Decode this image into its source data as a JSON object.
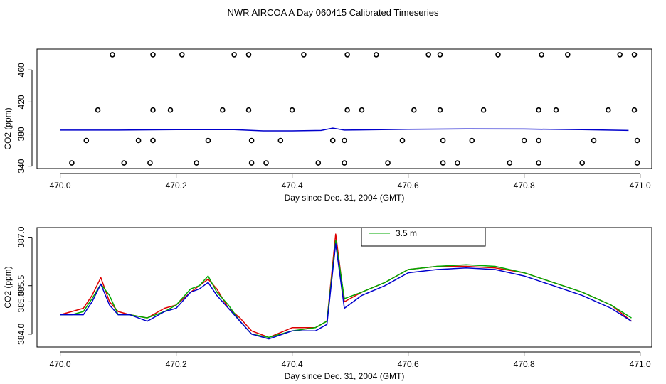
{
  "title": "NWR AIRCOA A  Day 060415  Calibrated Timeseries",
  "chart_data": [
    {
      "type": "scatter",
      "xlabel": "Day since Dec. 31, 2004 (GMT)",
      "ylabel": "CO2 (ppm)",
      "xlim": [
        469.96,
        471.02
      ],
      "ylim": [
        337,
        486
      ],
      "xticks": [
        "470.0",
        "470.2",
        "470.4",
        "470.6",
        "470.8",
        "471.0"
      ],
      "yticks": [
        "340",
        "380",
        "420",
        "460"
      ],
      "points": {
        "color": "#000000",
        "data": [
          [
            470.09,
            479
          ],
          [
            470.16,
            479
          ],
          [
            470.21,
            479
          ],
          [
            470.3,
            479
          ],
          [
            470.325,
            479
          ],
          [
            470.42,
            479
          ],
          [
            470.495,
            479
          ],
          [
            470.545,
            479
          ],
          [
            470.635,
            479
          ],
          [
            470.655,
            479
          ],
          [
            470.755,
            479
          ],
          [
            470.83,
            479
          ],
          [
            470.875,
            479
          ],
          [
            470.965,
            479
          ],
          [
            470.99,
            479
          ],
          [
            470.065,
            410
          ],
          [
            470.16,
            410
          ],
          [
            470.19,
            410
          ],
          [
            470.28,
            410
          ],
          [
            470.325,
            410
          ],
          [
            470.4,
            410
          ],
          [
            470.495,
            410
          ],
          [
            470.52,
            410
          ],
          [
            470.61,
            410
          ],
          [
            470.655,
            410
          ],
          [
            470.73,
            410
          ],
          [
            470.825,
            410
          ],
          [
            470.855,
            410
          ],
          [
            470.945,
            410
          ],
          [
            470.99,
            410
          ],
          [
            470.045,
            372
          ],
          [
            470.135,
            372
          ],
          [
            470.16,
            372
          ],
          [
            470.255,
            372
          ],
          [
            470.33,
            372
          ],
          [
            470.38,
            372
          ],
          [
            470.47,
            372
          ],
          [
            470.49,
            372
          ],
          [
            470.59,
            372
          ],
          [
            470.66,
            372
          ],
          [
            470.71,
            372
          ],
          [
            470.8,
            372
          ],
          [
            470.825,
            372
          ],
          [
            470.92,
            372
          ],
          [
            470.995,
            372
          ],
          [
            470.02,
            344
          ],
          [
            470.11,
            344
          ],
          [
            470.155,
            344
          ],
          [
            470.235,
            344
          ],
          [
            470.33,
            344
          ],
          [
            470.355,
            344
          ],
          [
            470.445,
            344
          ],
          [
            470.49,
            344
          ],
          [
            470.565,
            344
          ],
          [
            470.66,
            344
          ],
          [
            470.685,
            344
          ],
          [
            470.775,
            344
          ],
          [
            470.825,
            344
          ],
          [
            470.9,
            344
          ],
          [
            470.995,
            344
          ]
        ]
      },
      "line": {
        "color": "#0000cc",
        "data": [
          [
            470.0,
            385
          ],
          [
            470.1,
            385
          ],
          [
            470.2,
            385.5
          ],
          [
            470.3,
            385.5
          ],
          [
            470.35,
            384
          ],
          [
            470.4,
            384
          ],
          [
            470.45,
            384.5
          ],
          [
            470.47,
            387.5
          ],
          [
            470.49,
            385
          ],
          [
            470.6,
            386
          ],
          [
            470.7,
            386.5
          ],
          [
            470.8,
            386.3
          ],
          [
            470.9,
            385.5
          ],
          [
            470.98,
            384.5
          ]
        ]
      }
    },
    {
      "type": "line",
      "xlabel": "Day since Dec. 31, 2004 (GMT)",
      "ylabel": "CO2 (ppm)",
      "xlim": [
        469.96,
        471.02
      ],
      "ylim": [
        383.6,
        387.3
      ],
      "xticks": [
        "470.0",
        "470.2",
        "470.4",
        "470.6",
        "470.8",
        "471.0"
      ],
      "yticks": [
        "384.0",
        "385.0",
        "385.5",
        "387.0"
      ],
      "legend": {
        "position": "top-center",
        "entries": [
          {
            "label": "3.5 m",
            "color": "#00aa00"
          }
        ]
      },
      "x": [
        470.0,
        470.02,
        470.04,
        470.055,
        470.07,
        470.085,
        470.1,
        470.12,
        470.15,
        470.18,
        470.2,
        470.225,
        470.24,
        470.255,
        470.27,
        470.29,
        470.31,
        470.33,
        470.36,
        470.4,
        470.44,
        470.46,
        470.475,
        470.49,
        470.52,
        470.56,
        470.6,
        470.65,
        470.7,
        470.75,
        470.8,
        470.85,
        470.9,
        470.95,
        470.985
      ],
      "series": [
        {
          "color": "#dd0000",
          "values": [
            384.6,
            384.7,
            384.8,
            385.2,
            385.75,
            385.0,
            384.7,
            384.6,
            384.5,
            384.8,
            384.9,
            385.3,
            385.5,
            385.7,
            385.4,
            384.8,
            384.5,
            384.1,
            383.9,
            384.2,
            384.2,
            384.4,
            387.1,
            385.0,
            385.3,
            385.6,
            386.0,
            386.1,
            386.1,
            386.05,
            385.9,
            385.6,
            385.3,
            384.9,
            384.4
          ]
        },
        {
          "color": "#00aa00",
          "values": [
            384.6,
            384.6,
            384.7,
            385.1,
            385.55,
            385.2,
            384.6,
            384.6,
            384.5,
            384.7,
            384.9,
            385.4,
            385.5,
            385.8,
            385.3,
            384.9,
            384.4,
            384.0,
            383.9,
            384.1,
            384.2,
            384.4,
            386.9,
            385.1,
            385.3,
            385.6,
            386.0,
            386.1,
            386.15,
            386.1,
            385.9,
            385.6,
            385.3,
            384.9,
            384.5
          ]
        },
        {
          "color": "#0000cc",
          "values": [
            384.6,
            384.6,
            384.6,
            385.0,
            385.55,
            384.9,
            384.6,
            384.6,
            384.4,
            384.7,
            384.8,
            385.3,
            385.4,
            385.6,
            385.2,
            384.8,
            384.4,
            384.0,
            383.85,
            384.1,
            384.1,
            384.3,
            386.8,
            384.8,
            385.2,
            385.5,
            385.9,
            386.0,
            386.05,
            386.0,
            385.8,
            385.5,
            385.2,
            384.8,
            384.4
          ]
        }
      ]
    }
  ]
}
